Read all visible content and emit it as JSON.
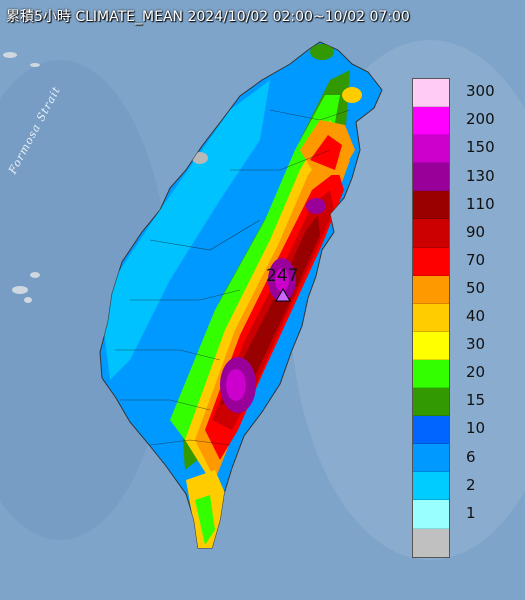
{
  "map": {
    "title": "累積5小時 CLIMATE_MEAN 2024/10/02 02:00~10/02 07:00",
    "strait_label": "Formosa Strait",
    "max_value_label": "247",
    "colors": {
      "sea": "#7fa4c9",
      "sea_light": "#9dbbd8",
      "grey_land": "#b8b8b8"
    }
  },
  "legend": [
    {
      "label": "300",
      "color": "#ffccf5"
    },
    {
      "label": "200",
      "color": "#ff00ff"
    },
    {
      "label": "150",
      "color": "#cc00cc"
    },
    {
      "label": "130",
      "color": "#990099"
    },
    {
      "label": "110",
      "color": "#990000"
    },
    {
      "label": "90",
      "color": "#cc0000"
    },
    {
      "label": "70",
      "color": "#ff0000"
    },
    {
      "label": "50",
      "color": "#ff9900"
    },
    {
      "label": "40",
      "color": "#ffcc00"
    },
    {
      "label": "30",
      "color": "#ffff00"
    },
    {
      "label": "20",
      "color": "#33ff00"
    },
    {
      "label": "15",
      "color": "#339900"
    },
    {
      "label": "10",
      "color": "#0066ff"
    },
    {
      "label": "6",
      "color": "#0099ff"
    },
    {
      "label": "2",
      "color": "#00ccff"
    },
    {
      "label": "1",
      "color": "#99ffff"
    },
    {
      "label": "",
      "color": "#c0c0c0"
    }
  ]
}
